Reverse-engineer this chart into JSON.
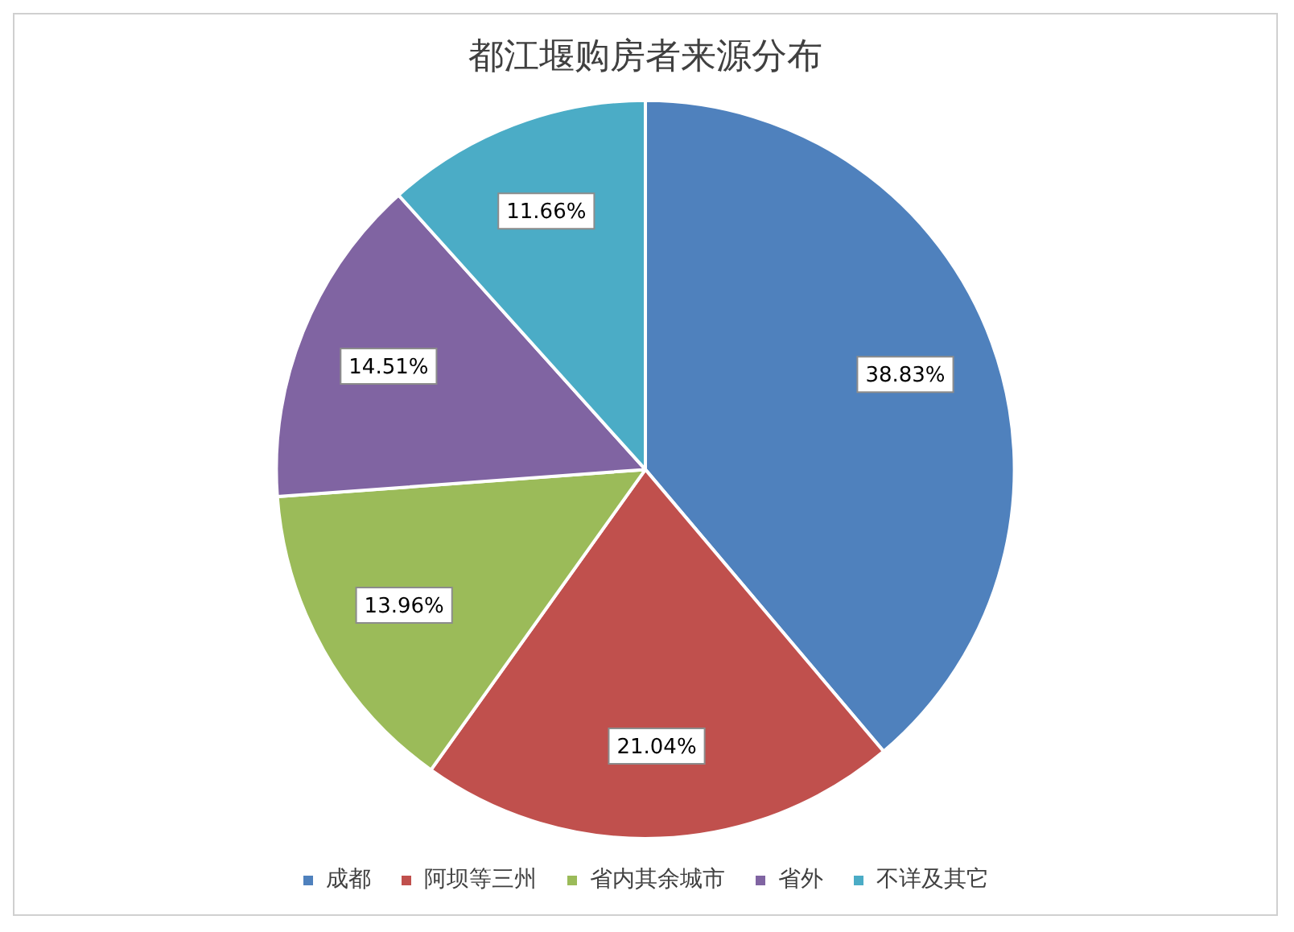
{
  "chart_data": {
    "type": "pie",
    "title": "都江堰购房者来源分布",
    "categories": [
      "成都",
      "阿坝等三州",
      "省内其余城市",
      "省外",
      "不详及其它"
    ],
    "values": [
      38.83,
      21.04,
      13.96,
      14.51,
      11.66
    ],
    "colors": [
      "#4f81bd",
      "#c0504d",
      "#9bbb59",
      "#8064a2",
      "#4bacc6"
    ],
    "value_labels": [
      "38.83%",
      "21.04%",
      "13.96%",
      "14.51%",
      "11.66%"
    ],
    "legend": "bottom"
  }
}
